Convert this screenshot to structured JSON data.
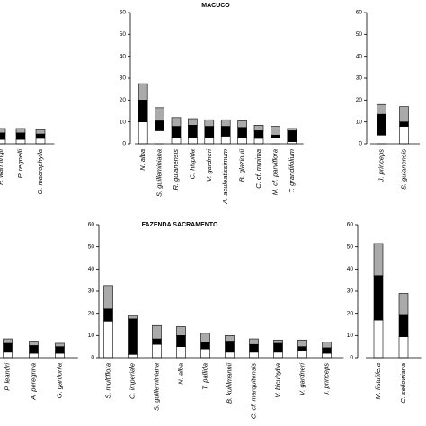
{
  "chart_data": [
    {
      "type": "bar",
      "stacked": true,
      "categories": [
        "P. warmingii",
        "P. regnelli",
        "G. macrophylla"
      ],
      "series": [
        {
          "color": "#ffffff",
          "values": [
            2,
            2,
            2.5
          ]
        },
        {
          "color": "#000000",
          "values": [
            3,
            3,
            2
          ]
        },
        {
          "color": "#aaaaaa",
          "values": [
            2,
            2,
            2
          ]
        }
      ],
      "ylim": [
        0,
        60
      ]
    },
    {
      "type": "bar",
      "stacked": true,
      "title": "MACUCO",
      "categories": [
        "N. alba",
        "S. guilleminiana",
        "R. guianensis",
        "C. hispida",
        "V. gardneri",
        "A. aculeatissimum",
        "B. glaziouii",
        "C. cf. minima",
        "M. cf. parviflora",
        "T. grandifolium"
      ],
      "series": [
        {
          "color": "#ffffff",
          "values": [
            10,
            6,
            3,
            3,
            3,
            3.5,
            3,
            2.5,
            3,
            1
          ]
        },
        {
          "color": "#000000",
          "values": [
            10,
            4.5,
            5,
            5.5,
            5,
            4.5,
            4.5,
            3.5,
            1,
            5
          ]
        },
        {
          "color": "#aaaaaa",
          "values": [
            7.5,
            6,
            4,
            3,
            3,
            3,
            3,
            2.5,
            4,
            1
          ]
        }
      ],
      "ylim": [
        0,
        60
      ],
      "yticks": [
        0,
        10,
        20,
        30,
        40,
        50,
        60
      ]
    },
    {
      "type": "bar",
      "stacked": true,
      "categories": [
        "J. princeps",
        "S. guianensis"
      ],
      "series": [
        {
          "color": "#ffffff",
          "values": [
            4,
            8
          ]
        },
        {
          "color": "#000000",
          "values": [
            9.5,
            2
          ]
        },
        {
          "color": "#aaaaaa",
          "values": [
            4.5,
            7
          ]
        }
      ],
      "ylim": [
        0,
        60
      ],
      "yticks": [
        0,
        10,
        20,
        30,
        40,
        50,
        60
      ]
    },
    {
      "type": "bar",
      "stacked": true,
      "categories": [
        "P. leandri",
        "A. peregrina",
        "G. gardonia"
      ],
      "series": [
        {
          "color": "#ffffff",
          "values": [
            2.5,
            2,
            2
          ]
        },
        {
          "color": "#000000",
          "values": [
            4,
            3.5,
            3
          ]
        },
        {
          "color": "#aaaaaa",
          "values": [
            2,
            2,
            1.5
          ]
        }
      ],
      "ylim": [
        0,
        60
      ]
    },
    {
      "type": "bar",
      "stacked": true,
      "title": "FAZENDA SACRAMENTO",
      "categories": [
        "S. multiflora",
        "C. imperiale",
        "S. guilleminiana",
        "N. alba",
        "T. pallida",
        "B. kuhlmannii",
        "C. cf. marquitensis",
        "V. bicuhyba",
        "V. gardneri",
        "J. princeps"
      ],
      "series": [
        {
          "color": "#ffffff",
          "values": [
            16.5,
            1.5,
            6,
            5,
            4,
            2.5,
            2.5,
            2.5,
            3,
            2
          ]
        },
        {
          "color": "#000000",
          "values": [
            5.5,
            16,
            2.5,
            5,
            3,
            5,
            3.5,
            4,
            2,
            2.5
          ]
        },
        {
          "color": "#aaaaaa",
          "values": [
            10.5,
            1.5,
            6,
            4,
            4,
            2.5,
            2.5,
            1.5,
            3,
            2.5
          ]
        }
      ],
      "ylim": [
        0,
        60
      ],
      "yticks": [
        0,
        10,
        20,
        30,
        40,
        50,
        60
      ]
    },
    {
      "type": "bar",
      "stacked": true,
      "categories": [
        "M. fistulifera",
        "C. sellowiana"
      ],
      "series": [
        {
          "color": "#ffffff",
          "values": [
            17,
            9.5
          ]
        },
        {
          "color": "#000000",
          "values": [
            20,
            10
          ]
        },
        {
          "color": "#aaaaaa",
          "values": [
            14.5,
            9.5
          ]
        }
      ],
      "ylim": [
        0,
        60
      ],
      "yticks": [
        0,
        10,
        20,
        30,
        40,
        50,
        60
      ]
    }
  ]
}
